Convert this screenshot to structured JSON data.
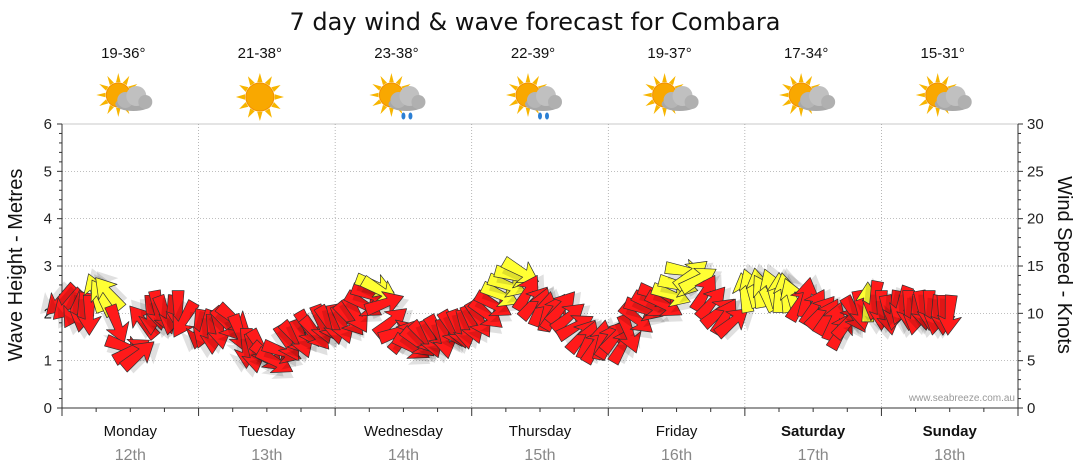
{
  "chart_data": {
    "type": "line",
    "title": "7 day wind & wave forecast for Combara",
    "ylabel_left": "Wave Height - Metres",
    "ylabel_right": "Wind Speed - Knots",
    "ylim_left": [
      0,
      6
    ],
    "ylim_right": [
      0,
      30
    ],
    "yticks_left": [
      "0",
      "1",
      "2",
      "3",
      "4",
      "5",
      "6"
    ],
    "yticks_right": [
      "0",
      "5",
      "10",
      "15",
      "20",
      "25",
      "30"
    ],
    "days": [
      {
        "day": "Monday",
        "date": "12th",
        "temp": "19-36°",
        "icon": "partly-cloudy-icon",
        "bold": false
      },
      {
        "day": "Tuesday",
        "date": "13th",
        "temp": "21-38°",
        "icon": "sunny-icon",
        "bold": false
      },
      {
        "day": "Wednesday",
        "date": "14th",
        "temp": "23-38°",
        "icon": "partly-cloudy-showers-icon",
        "bold": false
      },
      {
        "day": "Thursday",
        "date": "15th",
        "temp": "22-39°",
        "icon": "partly-cloudy-showers-icon",
        "bold": false
      },
      {
        "day": "Friday",
        "date": "16th",
        "temp": "19-37°",
        "icon": "partly-cloudy-icon",
        "bold": false
      },
      {
        "day": "Saturday",
        "date": "17th",
        "temp": "17-34°",
        "icon": "partly-cloudy-icon",
        "bold": true
      },
      {
        "day": "Sunday",
        "date": "18th",
        "temp": "15-31°",
        "icon": "partly-cloudy-icon",
        "bold": true
      }
    ],
    "wind_series": {
      "name": "Wind Speed (knots)",
      "points": [
        {
          "t": 0.0,
          "speed": 11.5,
          "dir": 135,
          "color": "#ff1a1a"
        },
        {
          "t": 0.05,
          "speed": 11.0,
          "dir": 135,
          "color": "#ff1a1a"
        },
        {
          "t": 0.1,
          "speed": 10.5,
          "dir": 120,
          "color": "#ff1a1a"
        },
        {
          "t": 0.15,
          "speed": 10.3,
          "dir": 100,
          "color": "#ff1a1a"
        },
        {
          "t": 0.2,
          "speed": 10.0,
          "dir": 90,
          "color": "#ff1a1a"
        },
        {
          "t": 0.25,
          "speed": 12.0,
          "dir": 250,
          "color": "#ffff33"
        },
        {
          "t": 0.3,
          "speed": 11.5,
          "dir": 240,
          "color": "#ffff33"
        },
        {
          "t": 0.35,
          "speed": 12.0,
          "dir": 230,
          "color": "#ffff33"
        },
        {
          "t": 0.4,
          "speed": 9.0,
          "dir": 70,
          "color": "#ff1a1a"
        },
        {
          "t": 0.45,
          "speed": 6.5,
          "dir": 20,
          "color": "#ff1a1a"
        },
        {
          "t": 0.5,
          "speed": 6.0,
          "dir": 330,
          "color": "#ff1a1a"
        },
        {
          "t": 0.55,
          "speed": 5.5,
          "dir": 320,
          "color": "#ff1a1a"
        },
        {
          "t": 0.6,
          "speed": 9.0,
          "dir": 230,
          "color": "#ff1a1a"
        },
        {
          "t": 0.65,
          "speed": 10.0,
          "dir": 90,
          "color": "#ff1a1a"
        },
        {
          "t": 0.7,
          "speed": 10.5,
          "dir": 80,
          "color": "#ff1a1a"
        },
        {
          "t": 0.75,
          "speed": 10.0,
          "dir": 70,
          "color": "#ff1a1a"
        },
        {
          "t": 0.8,
          "speed": 10.0,
          "dir": 100,
          "color": "#ff1a1a"
        },
        {
          "t": 0.85,
          "speed": 10.5,
          "dir": 90,
          "color": "#ff1a1a"
        },
        {
          "t": 0.9,
          "speed": 9.5,
          "dir": 120,
          "color": "#ff1a1a"
        },
        {
          "t": 1.0,
          "speed": 8.5,
          "dir": 100,
          "color": "#ff1a1a"
        },
        {
          "t": 1.05,
          "speed": 8.5,
          "dir": 110,
          "color": "#ff1a1a"
        },
        {
          "t": 1.1,
          "speed": 8.0,
          "dir": 90,
          "color": "#ff1a1a"
        },
        {
          "t": 1.15,
          "speed": 8.5,
          "dir": 80,
          "color": "#ff1a1a"
        },
        {
          "t": 1.2,
          "speed": 9.0,
          "dir": 50,
          "color": "#ff1a1a"
        },
        {
          "t": 1.25,
          "speed": 9.5,
          "dir": 40,
          "color": "#ff1a1a"
        },
        {
          "t": 1.3,
          "speed": 8.0,
          "dir": 70,
          "color": "#ff1a1a"
        },
        {
          "t": 1.35,
          "speed": 6.5,
          "dir": 90,
          "color": "#ff1a1a"
        },
        {
          "t": 1.4,
          "speed": 6.0,
          "dir": 80,
          "color": "#ff1a1a"
        },
        {
          "t": 1.45,
          "speed": 6.5,
          "dir": 60,
          "color": "#ff1a1a"
        },
        {
          "t": 1.5,
          "speed": 5.5,
          "dir": 40,
          "color": "#ff1a1a"
        },
        {
          "t": 1.55,
          "speed": 5.0,
          "dir": 30,
          "color": "#ff1a1a"
        },
        {
          "t": 1.6,
          "speed": 6.0,
          "dir": 20,
          "color": "#ff1a1a"
        },
        {
          "t": 1.65,
          "speed": 7.0,
          "dir": 60,
          "color": "#ff1a1a"
        },
        {
          "t": 1.7,
          "speed": 7.5,
          "dir": 50,
          "color": "#ff1a1a"
        },
        {
          "t": 1.75,
          "speed": 7.5,
          "dir": 70,
          "color": "#ff1a1a"
        },
        {
          "t": 1.8,
          "speed": 8.5,
          "dir": 60,
          "color": "#ff1a1a"
        },
        {
          "t": 1.85,
          "speed": 8.0,
          "dir": 50,
          "color": "#ff1a1a"
        },
        {
          "t": 1.9,
          "speed": 9.0,
          "dir": 70,
          "color": "#ff1a1a"
        },
        {
          "t": 1.95,
          "speed": 9.0,
          "dir": 60,
          "color": "#ff1a1a"
        },
        {
          "t": 2.0,
          "speed": 9.0,
          "dir": 80,
          "color": "#ff1a1a"
        },
        {
          "t": 2.05,
          "speed": 9.0,
          "dir": 70,
          "color": "#ff1a1a"
        },
        {
          "t": 2.1,
          "speed": 9.5,
          "dir": 50,
          "color": "#ff1a1a"
        },
        {
          "t": 2.15,
          "speed": 10.0,
          "dir": 60,
          "color": "#ff1a1a"
        },
        {
          "t": 2.2,
          "speed": 11.0,
          "dir": 30,
          "color": "#ff1a1a"
        },
        {
          "t": 2.25,
          "speed": 12.0,
          "dir": 20,
          "color": "#ff1a1a"
        },
        {
          "t": 2.28,
          "speed": 13.0,
          "dir": 20,
          "color": "#ffff33"
        },
        {
          "t": 2.32,
          "speed": 12.5,
          "dir": 30,
          "color": "#ffff33"
        },
        {
          "t": 2.35,
          "speed": 11.0,
          "dir": 340,
          "color": "#ff1a1a"
        },
        {
          "t": 2.4,
          "speed": 9.0,
          "dir": 320,
          "color": "#ff1a1a"
        },
        {
          "t": 2.45,
          "speed": 8.0,
          "dir": 340,
          "color": "#ff1a1a"
        },
        {
          "t": 2.5,
          "speed": 7.5,
          "dir": 310,
          "color": "#ff1a1a"
        },
        {
          "t": 2.55,
          "speed": 6.5,
          "dir": 30,
          "color": "#ff1a1a"
        },
        {
          "t": 2.6,
          "speed": 7.0,
          "dir": 40,
          "color": "#ff1a1a"
        },
        {
          "t": 2.65,
          "speed": 7.5,
          "dir": 50,
          "color": "#ff1a1a"
        },
        {
          "t": 2.7,
          "speed": 7.5,
          "dir": 70,
          "color": "#ff1a1a"
        },
        {
          "t": 2.75,
          "speed": 8.0,
          "dir": 60,
          "color": "#ff1a1a"
        },
        {
          "t": 2.8,
          "speed": 7.5,
          "dir": 80,
          "color": "#ff1a1a"
        },
        {
          "t": 2.85,
          "speed": 8.5,
          "dir": 60,
          "color": "#ff1a1a"
        },
        {
          "t": 2.9,
          "speed": 8.5,
          "dir": 70,
          "color": "#ff1a1a"
        },
        {
          "t": 2.95,
          "speed": 8.5,
          "dir": 80,
          "color": "#ff1a1a"
        },
        {
          "t": 3.0,
          "speed": 9.0,
          "dir": 70,
          "color": "#ff1a1a"
        },
        {
          "t": 3.05,
          "speed": 9.5,
          "dir": 60,
          "color": "#ff1a1a"
        },
        {
          "t": 3.1,
          "speed": 10.0,
          "dir": 40,
          "color": "#ff1a1a"
        },
        {
          "t": 3.15,
          "speed": 11.0,
          "dir": 30,
          "color": "#ff1a1a"
        },
        {
          "t": 3.2,
          "speed": 12.0,
          "dir": 25,
          "color": "#ffff33"
        },
        {
          "t": 3.25,
          "speed": 13.0,
          "dir": 20,
          "color": "#ffff33"
        },
        {
          "t": 3.3,
          "speed": 14.0,
          "dir": 15,
          "color": "#ffff33"
        },
        {
          "t": 3.35,
          "speed": 14.5,
          "dir": 30,
          "color": "#ffff33"
        },
        {
          "t": 3.4,
          "speed": 12.0,
          "dir": 300,
          "color": "#ff1a1a"
        },
        {
          "t": 3.45,
          "speed": 11.0,
          "dir": 310,
          "color": "#ff1a1a"
        },
        {
          "t": 3.5,
          "speed": 10.5,
          "dir": 290,
          "color": "#ff1a1a"
        },
        {
          "t": 3.55,
          "speed": 10.0,
          "dir": 280,
          "color": "#ff1a1a"
        },
        {
          "t": 3.6,
          "speed": 10.0,
          "dir": 300,
          "color": "#ff1a1a"
        },
        {
          "t": 3.65,
          "speed": 10.5,
          "dir": 310,
          "color": "#ff1a1a"
        },
        {
          "t": 3.7,
          "speed": 9.5,
          "dir": 320,
          "color": "#ff1a1a"
        },
        {
          "t": 3.75,
          "speed": 8.5,
          "dir": 330,
          "color": "#ff1a1a"
        },
        {
          "t": 3.8,
          "speed": 7.5,
          "dir": 310,
          "color": "#ff1a1a"
        },
        {
          "t": 3.85,
          "speed": 7.0,
          "dir": 290,
          "color": "#ff1a1a"
        },
        {
          "t": 3.9,
          "speed": 6.5,
          "dir": 300,
          "color": "#ff1a1a"
        },
        {
          "t": 3.95,
          "speed": 7.0,
          "dir": 280,
          "color": "#ff1a1a"
        },
        {
          "t": 4.0,
          "speed": 7.0,
          "dir": 300,
          "color": "#ff1a1a"
        },
        {
          "t": 4.05,
          "speed": 7.5,
          "dir": 310,
          "color": "#ff1a1a"
        },
        {
          "t": 4.1,
          "speed": 6.5,
          "dir": 300,
          "color": "#ff1a1a"
        },
        {
          "t": 4.15,
          "speed": 8.0,
          "dir": 70,
          "color": "#ff1a1a"
        },
        {
          "t": 4.2,
          "speed": 9.5,
          "dir": 40,
          "color": "#ff1a1a"
        },
        {
          "t": 4.25,
          "speed": 10.5,
          "dir": 20,
          "color": "#ff1a1a"
        },
        {
          "t": 4.3,
          "speed": 11.0,
          "dir": 30,
          "color": "#ff1a1a"
        },
        {
          "t": 4.35,
          "speed": 12.0,
          "dir": 20,
          "color": "#ff1a1a"
        },
        {
          "t": 4.4,
          "speed": 11.0,
          "dir": 30,
          "color": "#ff1a1a"
        },
        {
          "t": 4.45,
          "speed": 12.0,
          "dir": 20,
          "color": "#ffff33"
        },
        {
          "t": 4.5,
          "speed": 13.0,
          "dir": 15,
          "color": "#ffff33"
        },
        {
          "t": 4.55,
          "speed": 14.5,
          "dir": 10,
          "color": "#ffff33"
        },
        {
          "t": 4.6,
          "speed": 14.0,
          "dir": 320,
          "color": "#ffff33"
        },
        {
          "t": 4.65,
          "speed": 13.5,
          "dir": 330,
          "color": "#ffff33"
        },
        {
          "t": 4.7,
          "speed": 12.0,
          "dir": 300,
          "color": "#ff1a1a"
        },
        {
          "t": 4.75,
          "speed": 11.0,
          "dir": 310,
          "color": "#ff1a1a"
        },
        {
          "t": 4.8,
          "speed": 10.0,
          "dir": 320,
          "color": "#ff1a1a"
        },
        {
          "t": 4.85,
          "speed": 9.5,
          "dir": 300,
          "color": "#ff1a1a"
        },
        {
          "t": 4.9,
          "speed": 9.0,
          "dir": 320,
          "color": "#ff1a1a"
        },
        {
          "t": 5.0,
          "speed": 12.0,
          "dir": 260,
          "color": "#ffff33"
        },
        {
          "t": 5.05,
          "speed": 12.5,
          "dir": 250,
          "color": "#ffff33"
        },
        {
          "t": 5.1,
          "speed": 12.5,
          "dir": 260,
          "color": "#ffff33"
        },
        {
          "t": 5.15,
          "speed": 12.0,
          "dir": 240,
          "color": "#ffff33"
        },
        {
          "t": 5.2,
          "speed": 12.5,
          "dir": 250,
          "color": "#ffff33"
        },
        {
          "t": 5.25,
          "speed": 12.0,
          "dir": 270,
          "color": "#ffff33"
        },
        {
          "t": 5.3,
          "speed": 12.0,
          "dir": 260,
          "color": "#ffff33"
        },
        {
          "t": 5.35,
          "speed": 11.5,
          "dir": 250,
          "color": "#ffff33"
        },
        {
          "t": 5.4,
          "speed": 11.0,
          "dir": 300,
          "color": "#ff1a1a"
        },
        {
          "t": 5.45,
          "speed": 11.5,
          "dir": 280,
          "color": "#ff1a1a"
        },
        {
          "t": 5.5,
          "speed": 10.5,
          "dir": 300,
          "color": "#ff1a1a"
        },
        {
          "t": 5.55,
          "speed": 10.0,
          "dir": 310,
          "color": "#ff1a1a"
        },
        {
          "t": 5.6,
          "speed": 9.5,
          "dir": 300,
          "color": "#ff1a1a"
        },
        {
          "t": 5.65,
          "speed": 9.0,
          "dir": 290,
          "color": "#ff1a1a"
        },
        {
          "t": 5.7,
          "speed": 8.0,
          "dir": 300,
          "color": "#ff1a1a"
        },
        {
          "t": 5.75,
          "speed": 9.0,
          "dir": 310,
          "color": "#ff1a1a"
        },
        {
          "t": 5.8,
          "speed": 10.0,
          "dir": 60,
          "color": "#ff1a1a"
        },
        {
          "t": 5.85,
          "speed": 10.5,
          "dir": 80,
          "color": "#ff1a1a"
        },
        {
          "t": 5.9,
          "speed": 11.0,
          "dir": 270,
          "color": "#ffff33"
        },
        {
          "t": 5.95,
          "speed": 11.5,
          "dir": 100,
          "color": "#ff1a1a"
        },
        {
          "t": 6.0,
          "speed": 10.5,
          "dir": 90,
          "color": "#ff1a1a"
        },
        {
          "t": 6.05,
          "speed": 10.0,
          "dir": 80,
          "color": "#ff1a1a"
        },
        {
          "t": 6.1,
          "speed": 10.5,
          "dir": 100,
          "color": "#ff1a1a"
        },
        {
          "t": 6.15,
          "speed": 11.0,
          "dir": 110,
          "color": "#ff1a1a"
        },
        {
          "t": 6.2,
          "speed": 10.5,
          "dir": 90,
          "color": "#ff1a1a"
        },
        {
          "t": 6.25,
          "speed": 10.0,
          "dir": 100,
          "color": "#ff1a1a"
        },
        {
          "t": 6.3,
          "speed": 10.5,
          "dir": 80,
          "color": "#ff1a1a"
        },
        {
          "t": 6.35,
          "speed": 10.5,
          "dir": 90,
          "color": "#ff1a1a"
        },
        {
          "t": 6.4,
          "speed": 10.0,
          "dir": 100,
          "color": "#ff1a1a"
        },
        {
          "t": 6.45,
          "speed": 10.0,
          "dir": 90,
          "color": "#ff1a1a"
        },
        {
          "t": 6.5,
          "speed": 10.0,
          "dir": 95,
          "color": "#ff1a1a"
        }
      ]
    },
    "watermark": "www.seabreeze.com.au"
  }
}
